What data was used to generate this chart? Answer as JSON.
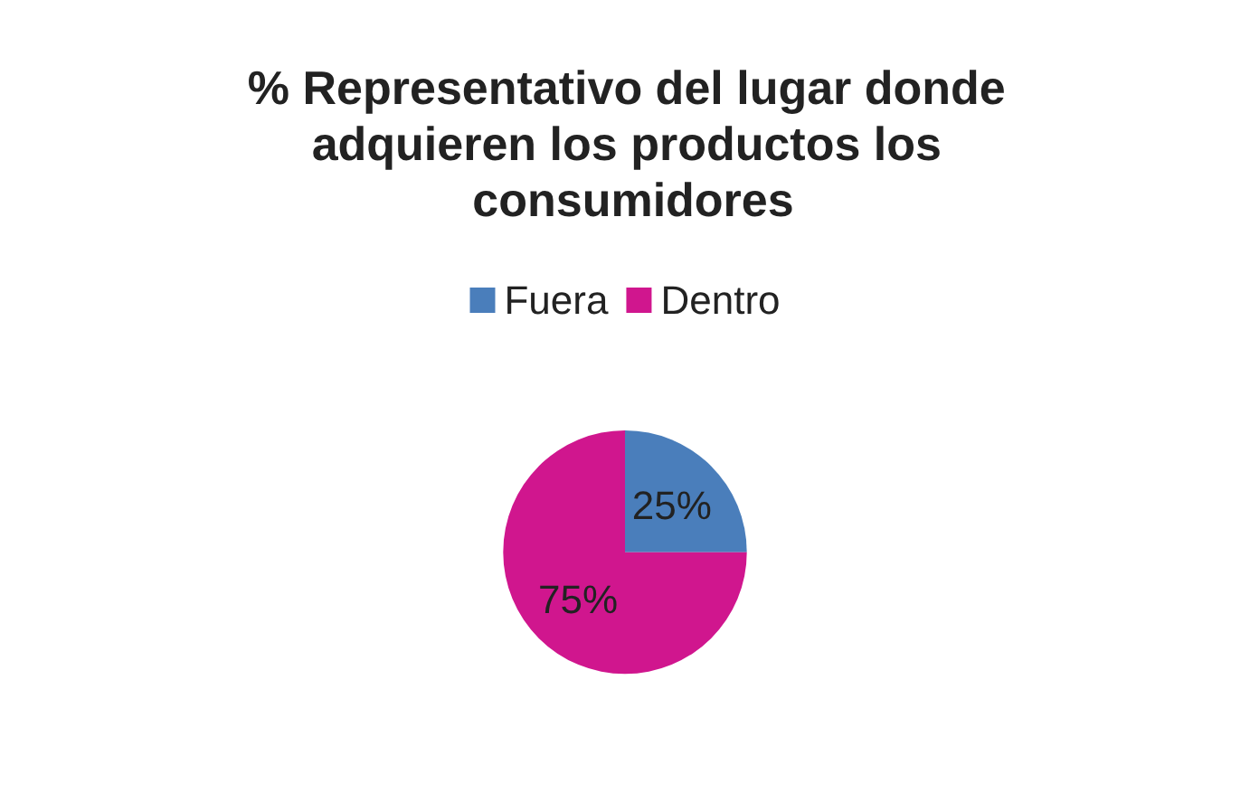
{
  "chart_data": {
    "type": "pie",
    "title": "% Representativo del lugar donde adquieren los productos los consumidores",
    "categories": [
      "Fuera",
      "Dentro"
    ],
    "values": [
      25,
      75
    ],
    "colors": [
      "#4a7ebb",
      "#d0168e"
    ],
    "value_labels": [
      "25%",
      "75%"
    ],
    "legend": "top"
  }
}
